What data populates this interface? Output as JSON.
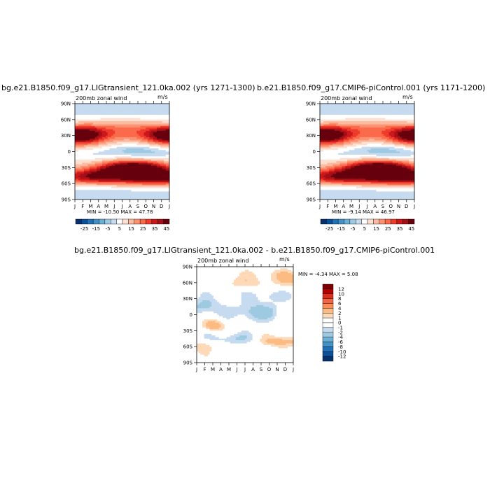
{
  "panels": [
    {
      "id": "transient",
      "title": "bg.e21.B1850.f09_g17.LIGtransient_121.0ka.002 (yrs 1271-1300)",
      "subtitle_left": "200mb zonal wind",
      "subtitle_right": "m/s",
      "stats": "MIN = -10.50 MAX = 47.78"
    },
    {
      "id": "picontrol",
      "title": "b.e21.B1850.f09_g17.CMIP6-piControl.001 (yrs 1171-1200)",
      "subtitle_left": "200mb zonal wind",
      "subtitle_right": "m/s",
      "stats": "MIN = -9.14 MAX = 46.97"
    },
    {
      "id": "difference",
      "title": "bg.e21.B1850.f09_g17.LIGtransient_121.0ka.002 - b.e21.B1850.f09_g17.CMIP6-piControl.001",
      "subtitle_left": "200mb zonal wind",
      "subtitle_right": "m/s",
      "stats": "MIN = -4.34 MAX = 5.08"
    }
  ],
  "axes": {
    "x_ticks": [
      "J",
      "F",
      "M",
      "A",
      "M",
      "J",
      "J",
      "A",
      "S",
      "O",
      "N",
      "D",
      "J"
    ],
    "y_ticks": [
      "90N",
      "60N",
      "30N",
      "0",
      "30S",
      "60S",
      "90S"
    ]
  },
  "colorbars": {
    "main": {
      "labels": [
        "-25",
        "-15",
        "-5",
        "5",
        "15",
        "25",
        "35",
        "45"
      ],
      "colors": [
        "#08306b",
        "#08519c",
        "#2171b5",
        "#4292c6",
        "#6baed6",
        "#9ecae1",
        "#c6dbef",
        "#ffffff",
        "#fee0d2",
        "#fcbba1",
        "#fc9272",
        "#fb6a4a",
        "#ef3b2c",
        "#cb181d",
        "#a50f15",
        "#67000d"
      ]
    },
    "difference": {
      "labels": [
        "12",
        "10",
        "8",
        "6",
        "4",
        "2",
        "1",
        "0",
        "-1",
        "-2",
        "-4",
        "-6",
        "-8",
        "-10",
        "-12"
      ],
      "colors": [
        "#7f0000",
        "#b30000",
        "#d7301f",
        "#ef6548",
        "#fc8d59",
        "#fdbb84",
        "#fdd9b8",
        "#ffffff",
        "#ffffff",
        "#c6dbef",
        "#9ecae1",
        "#6baed6",
        "#4292c6",
        "#2171b5",
        "#08519c",
        "#08306b"
      ]
    }
  },
  "chart_data": [
    {
      "type": "heatmap",
      "title": "bg.e21.B1850.f09_g17.LIGtransient_121.0ka.002 (yrs 1271-1300)",
      "variable": "200mb zonal wind",
      "units": "m/s",
      "x_categories": [
        "J",
        "F",
        "M",
        "A",
        "M",
        "J",
        "J",
        "A",
        "S",
        "O",
        "N",
        "D",
        "J"
      ],
      "y_range": [
        -90,
        90
      ],
      "min": -10.5,
      "max": 47.78,
      "features": [
        {
          "lat": 30,
          "month_center": 1.0,
          "value": 45
        },
        {
          "lat": 30,
          "month_center": 12.0,
          "value": 42
        },
        {
          "lat": -30,
          "month_center": 7.5,
          "value": 47
        },
        {
          "lat": 0,
          "month_center": 7.5,
          "value": -10
        }
      ]
    },
    {
      "type": "heatmap",
      "title": "b.e21.B1850.f09_g17.CMIP6-piControl.001 (yrs 1171-1200)",
      "variable": "200mb zonal wind",
      "units": "m/s",
      "x_categories": [
        "J",
        "F",
        "M",
        "A",
        "M",
        "J",
        "J",
        "A",
        "S",
        "O",
        "N",
        "D",
        "J"
      ],
      "y_range": [
        -90,
        90
      ],
      "min": -9.14,
      "max": 46.97,
      "features": [
        {
          "lat": 30,
          "month_center": 1.0,
          "value": 44
        },
        {
          "lat": 30,
          "month_center": 12.0,
          "value": 41
        },
        {
          "lat": -30,
          "month_center": 7.5,
          "value": 46
        },
        {
          "lat": 0,
          "month_center": 7.5,
          "value": -9
        }
      ]
    },
    {
      "type": "heatmap",
      "title": "bg.e21.B1850.f09_g17.LIGtransient_121.0ka.002 - b.e21.B1850.f09_g17.CMIP6-piControl.001",
      "variable": "200mb zonal wind",
      "units": "m/s",
      "x_categories": [
        "J",
        "F",
        "M",
        "A",
        "M",
        "J",
        "J",
        "A",
        "S",
        "O",
        "N",
        "D",
        "J"
      ],
      "y_range": [
        -90,
        90
      ],
      "min": -4.34,
      "max": 5.08,
      "features": [
        {
          "lat": 10,
          "month_center": 1.0,
          "value": -3
        },
        {
          "lat": 10,
          "month_center": 7.5,
          "value": -3
        },
        {
          "lat": -20,
          "month_center": 2.5,
          "value": 4
        },
        {
          "lat": -50,
          "month_center": 10.5,
          "value": 4
        },
        {
          "lat": 60,
          "month_center": 11.5,
          "value": 3
        }
      ]
    }
  ]
}
